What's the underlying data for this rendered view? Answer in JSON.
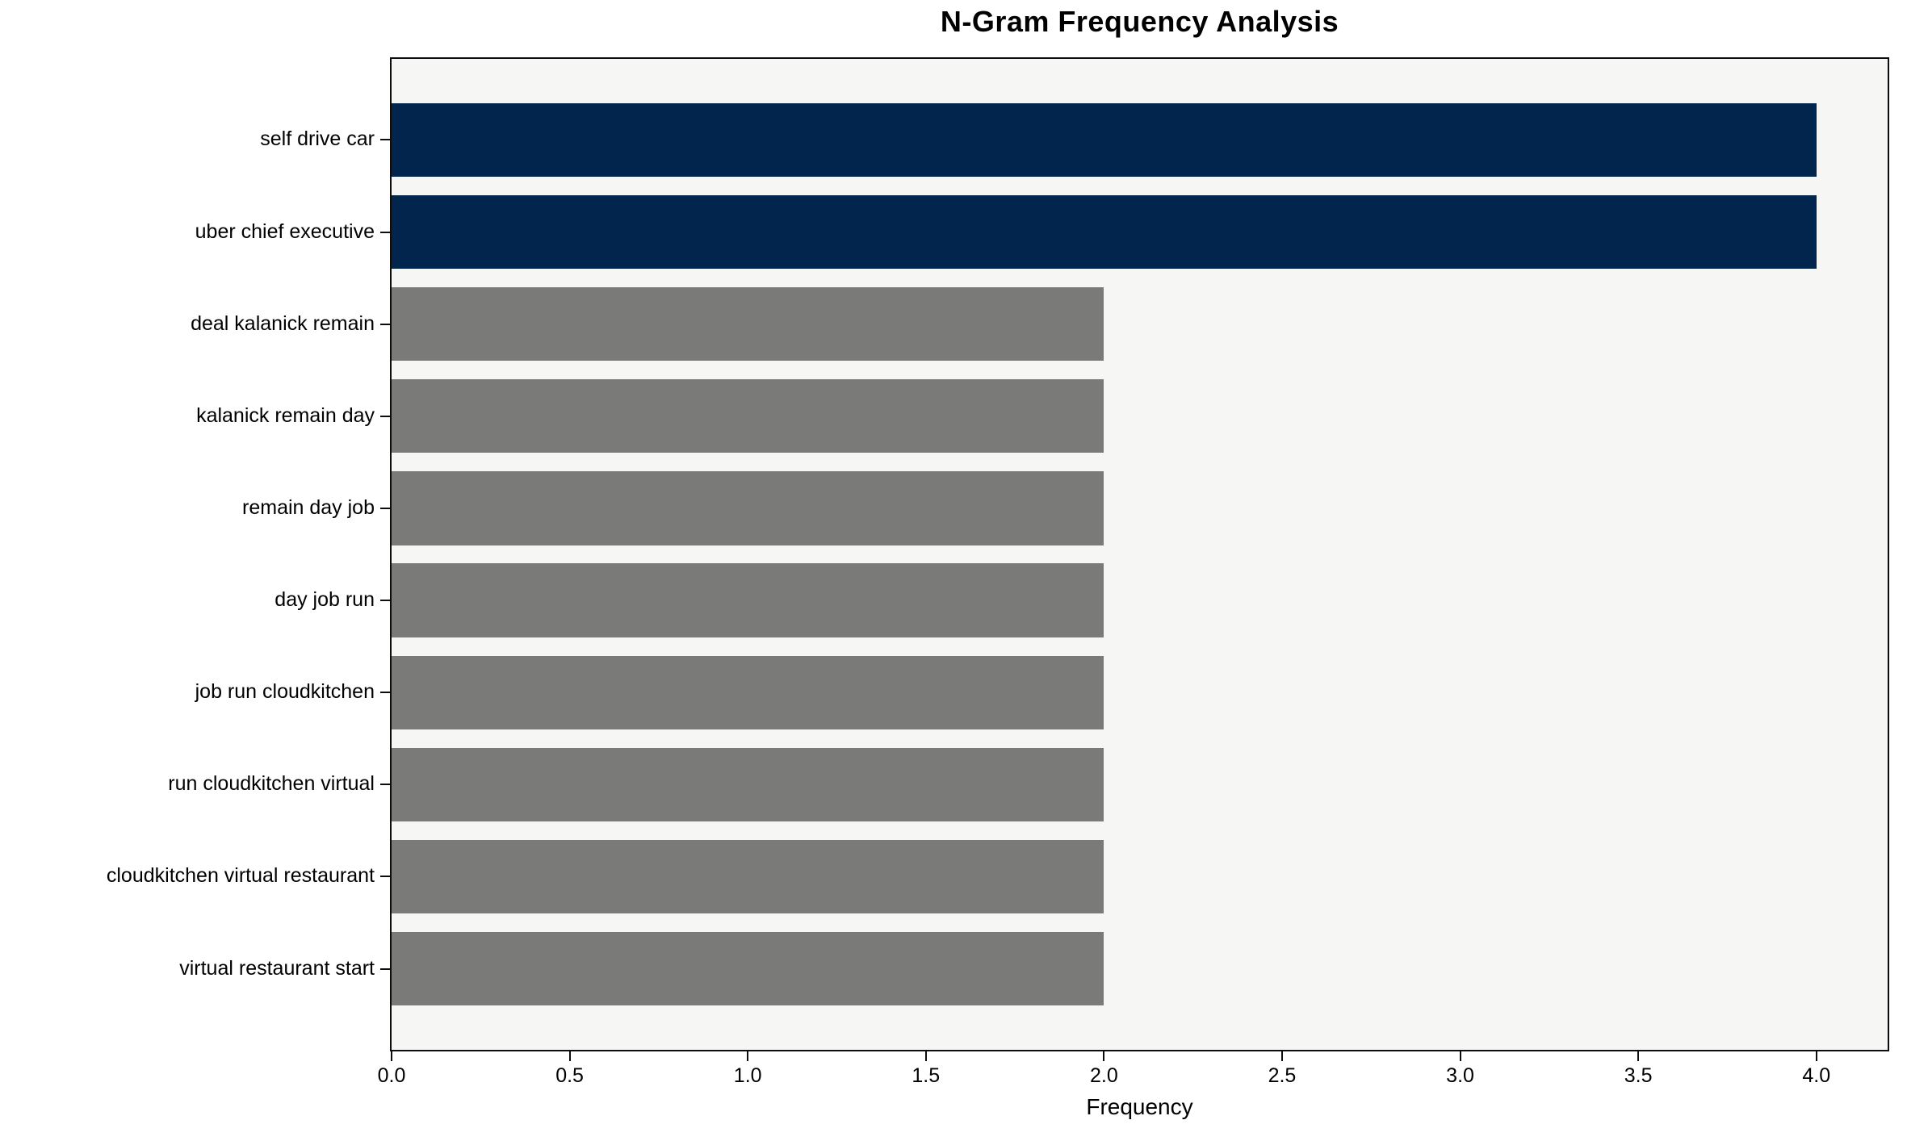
{
  "chart_data": {
    "type": "bar",
    "orientation": "horizontal",
    "title": "N-Gram Frequency Analysis",
    "xlabel": "Frequency",
    "ylabel": "",
    "categories": [
      "self drive car",
      "uber chief executive",
      "deal kalanick remain",
      "kalanick remain day",
      "remain day job",
      "day job run",
      "job run cloudkitchen",
      "run cloudkitchen virtual",
      "cloudkitchen virtual restaurant",
      "virtual restaurant start"
    ],
    "values": [
      4,
      4,
      2,
      2,
      2,
      2,
      2,
      2,
      2,
      2
    ],
    "bar_colors": [
      "#02254E",
      "#02254E",
      "#7A7A78",
      "#7A7A78",
      "#7A7A78",
      "#7A7A78",
      "#7A7A78",
      "#7A7A78",
      "#7A7A78",
      "#7A7A78"
    ],
    "highlight_color": "#02254E",
    "default_color": "#7A7A78",
    "plot_background": "#F6F6F5",
    "spine_color": "#0d0d0d",
    "xlim": [
      0,
      4.2
    ],
    "xticks": [
      0.0,
      0.5,
      1.0,
      1.5,
      2.0,
      2.5,
      3.0,
      3.5,
      4.0
    ],
    "xtick_format_decimals": 1,
    "grid": false,
    "legend": null
  }
}
